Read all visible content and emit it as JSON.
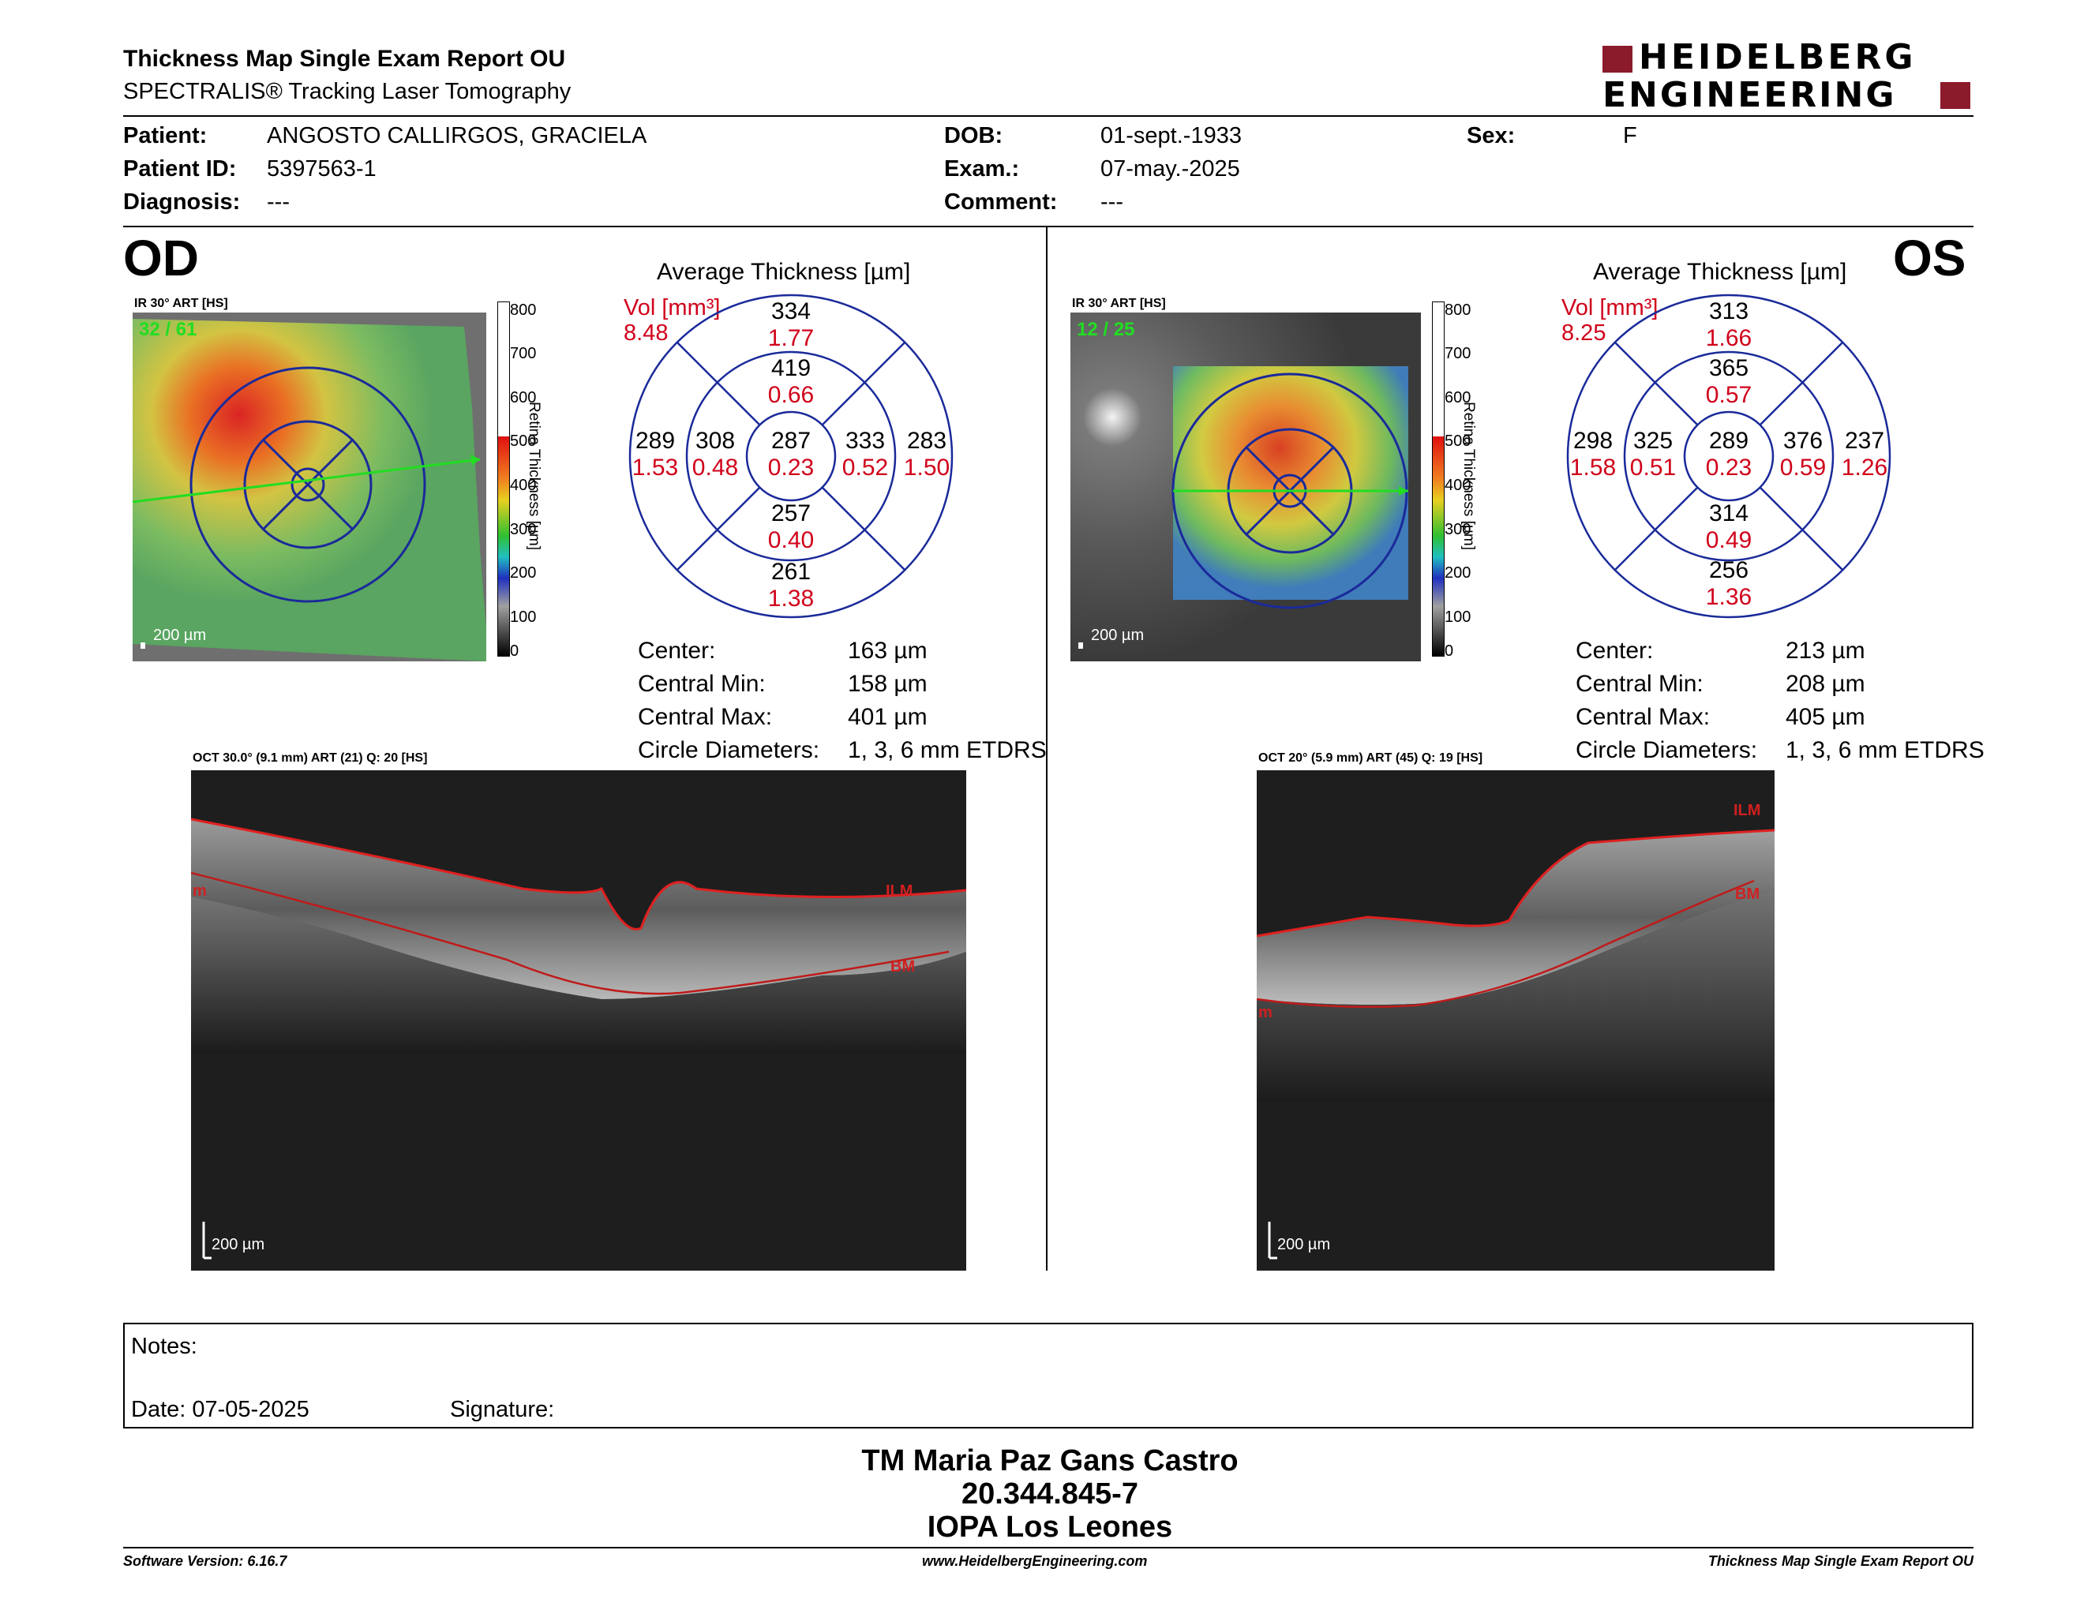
{
  "header": {
    "title": "Thickness Map Single Exam Report OU",
    "subtitle": "SPECTRALIS® Tracking Laser Tomography",
    "logo_line1": "HEIDELBERG",
    "logo_line2": "ENGINEERING"
  },
  "patient": {
    "patient_label": "Patient:",
    "patient_value": "ANGOSTO CALLIRGOS, GRACIELA",
    "id_label": "Patient ID:",
    "id_value": "5397563-1",
    "diagnosis_label": "Diagnosis:",
    "diagnosis_value": "---",
    "dob_label": "DOB:",
    "dob_value": "01-sept.-1933",
    "exam_label": "Exam.:",
    "exam_value": "07-may.-2025",
    "comment_label": "Comment:",
    "comment_value": "---",
    "sex_label": "Sex:",
    "sex_value": "F"
  },
  "od": {
    "eye": "OD",
    "ir_label": "IR 30° ART [HS]",
    "frames": "32 / 61",
    "scale": "200 µm",
    "colorbar_ticks": [
      "800",
      "700",
      "600",
      "500",
      "400",
      "300",
      "200",
      "100",
      "0"
    ],
    "colorbar_title": "Retina Thickness [µm]",
    "avg_title": "Average Thickness [µm]",
    "vol_label": "Vol [mm³]",
    "vol_total": "8.48",
    "sectors": {
      "center_t": "287",
      "center_v": "0.23",
      "in_sup_t": "419",
      "in_sup_v": "0.66",
      "in_inf_t": "257",
      "in_inf_v": "0.40",
      "in_left_t": "308",
      "in_left_v": "0.48",
      "in_right_t": "333",
      "in_right_v": "0.52",
      "out_sup_t": "334",
      "out_sup_v": "1.77",
      "out_inf_t": "261",
      "out_inf_v": "1.38",
      "out_left_t": "289",
      "out_left_v": "1.53",
      "out_right_t": "283",
      "out_right_v": "1.50"
    },
    "stats": {
      "center_label": "Center:",
      "center_value": "163 µm",
      "min_label": "Central Min:",
      "min_value": "158 µm",
      "max_label": "Central Max:",
      "max_value": "401 µm",
      "diam_label": "Circle Diameters:",
      "diam_value": "1, 3, 6 mm ETDRS"
    },
    "oct_label": "OCT 30.0° (9.1 mm) ART (21) Q: 20 [HS]",
    "oct_scale": "200 µm",
    "ilm": "ILM",
    "bm": "BM",
    "m": "m"
  },
  "os": {
    "eye": "OS",
    "ir_label": "IR 30° ART [HS]",
    "frames": "12 / 25",
    "scale": "200 µm",
    "colorbar_ticks": [
      "800",
      "700",
      "600",
      "500",
      "400",
      "300",
      "200",
      "100",
      "0"
    ],
    "colorbar_title": "Retina Thickness [µm]",
    "avg_title": "Average Thickness [µm]",
    "vol_label": "Vol [mm³]",
    "vol_total": "8.25",
    "sectors": {
      "center_t": "289",
      "center_v": "0.23",
      "in_sup_t": "365",
      "in_sup_v": "0.57",
      "in_inf_t": "314",
      "in_inf_v": "0.49",
      "in_left_t": "325",
      "in_left_v": "0.51",
      "in_right_t": "376",
      "in_right_v": "0.59",
      "out_sup_t": "313",
      "out_sup_v": "1.66",
      "out_inf_t": "256",
      "out_inf_v": "1.36",
      "out_left_t": "298",
      "out_left_v": "1.58",
      "out_right_t": "237",
      "out_right_v": "1.26"
    },
    "stats": {
      "center_label": "Center:",
      "center_value": "213 µm",
      "min_label": "Central Min:",
      "min_value": "208 µm",
      "max_label": "Central Max:",
      "max_value": "405 µm",
      "diam_label": "Circle Diameters:",
      "diam_value": "1, 3, 6 mm ETDRS"
    },
    "oct_label": "OCT 20° (5.9 mm) ART (45) Q: 19 [HS]",
    "oct_scale": "200 µm",
    "ilm": "ILM",
    "bm": "BM",
    "m": "m"
  },
  "notes": {
    "notes_label": "Notes:",
    "date_label": "Date: 07-05-2025",
    "signature_label": "Signature:"
  },
  "signer": {
    "name": "TM Maria Paz Gans Castro",
    "rut": "20.344.845-7",
    "institution": "IOPA Los Leones"
  },
  "footer": {
    "software": "Software Version: 6.16.7",
    "website": "www.HeidelbergEngineering.com",
    "report": "Thickness Map Single Exam Report OU"
  },
  "colors": {
    "vol_red": "#d0021b",
    "ring_blue": "#1a2a9a",
    "logo_red": "#8b1a2b"
  }
}
